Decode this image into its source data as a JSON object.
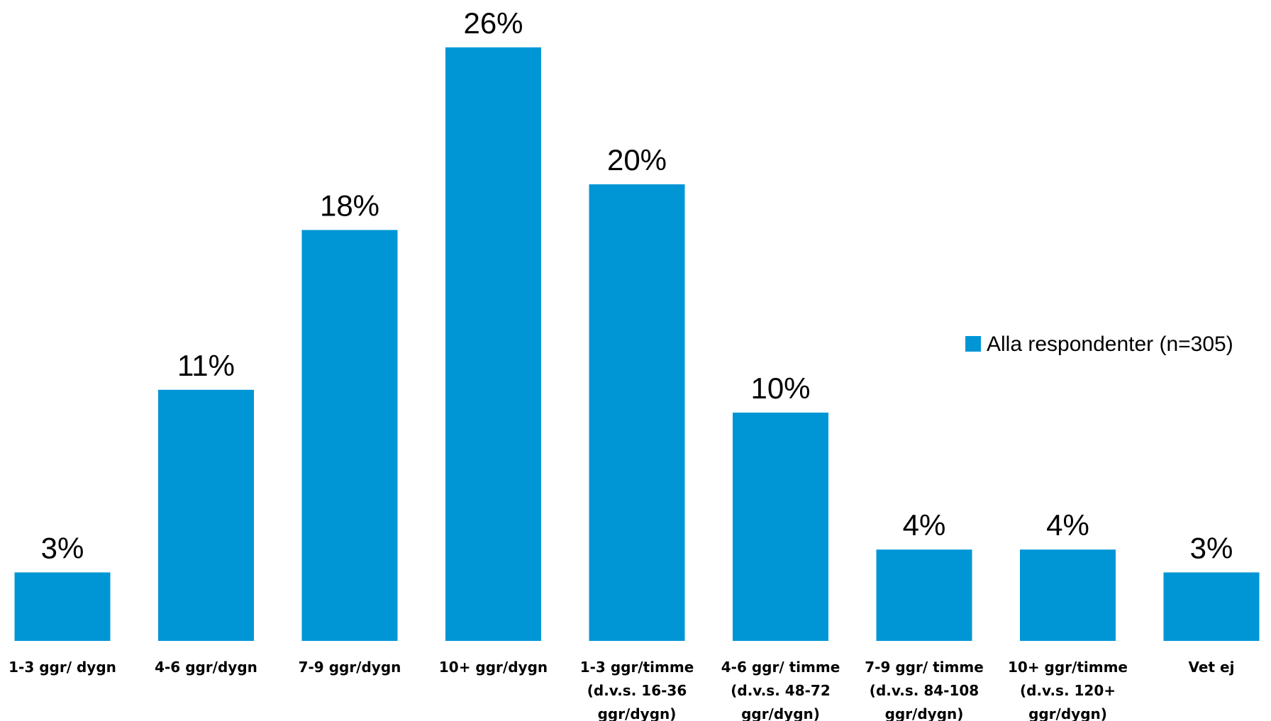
{
  "chart_data": {
    "type": "bar",
    "categories": [
      [
        "1-3 ggr/ dygn"
      ],
      [
        "4-6 ggr/dygn"
      ],
      [
        "7-9 ggr/dygn"
      ],
      [
        "10+ ggr/dygn"
      ],
      [
        "1-3 ggr/timme",
        "(d.v.s. 16-36",
        "ggr/dygn)"
      ],
      [
        "4-6 ggr/ timme",
        "(d.v.s. 48-72",
        "ggr/dygn)"
      ],
      [
        "7-9 ggr/ timme",
        "(d.v.s. 84-108",
        "ggr/dygn)"
      ],
      [
        "10+ ggr/timme",
        "(d.v.s. 120+",
        "ggr/dygn)"
      ],
      [
        "Vet ej"
      ]
    ],
    "series": [
      {
        "name": "Alla respondenter (n=305)",
        "values": [
          3,
          11,
          18,
          26,
          20,
          10,
          4,
          4,
          3
        ],
        "value_labels": [
          "3%",
          "11%",
          "18%",
          "26%",
          "20%",
          "10%",
          "4%",
          "4%",
          "3%"
        ],
        "color": "#0096D6"
      }
    ],
    "ylim": [
      0,
      27
    ],
    "grid": false,
    "legend_position": "right"
  }
}
